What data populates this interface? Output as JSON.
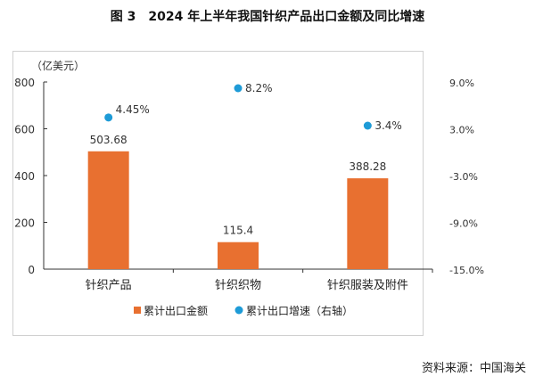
{
  "chart_data": {
    "type": "bar+scatter",
    "title": "图 3　2024 年上半年我国针织产品出口金额及同比增速",
    "ylabel": "（亿美元）",
    "categories": [
      "针织产品",
      "针织织物",
      "针织服装及附件"
    ],
    "series": [
      {
        "name": "累计出口金额",
        "type": "bar",
        "axis": "left",
        "values": [
          503.68,
          115.4,
          388.28
        ],
        "labels": [
          "503.68",
          "115.4",
          "388.28"
        ],
        "color": "#E87030"
      },
      {
        "name": "累计出口增速（右轴）",
        "type": "scatter",
        "axis": "right",
        "values": [
          4.45,
          8.2,
          3.4
        ],
        "labels": [
          "4.45%",
          "8.2%",
          "3.4%"
        ],
        "color": "#1E9BD7"
      }
    ],
    "ylim": [
      0,
      800
    ],
    "yticks": [
      "0",
      "200",
      "400",
      "600",
      "800"
    ],
    "y2lim": [
      -15,
      9
    ],
    "y2ticks": [
      "-15.0%",
      "-9.0%",
      "-3.0%",
      "3.0%",
      "9.0%"
    ],
    "grid": false,
    "legend": "bottom"
  },
  "source": "资料来源：中国海关"
}
